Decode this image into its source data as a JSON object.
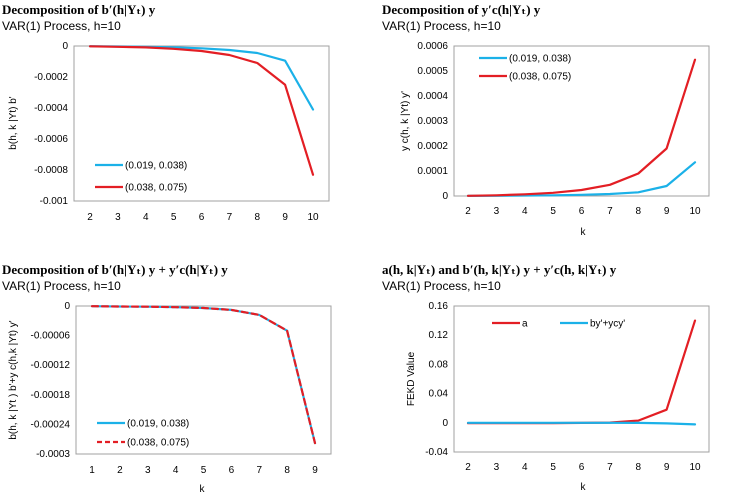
{
  "chart_data": [
    {
      "type": "line",
      "title": "Decomposition of b′(h|Yₜ) y",
      "subtitle": "VAR(1) Process, h=10",
      "xlabel": "",
      "ylabel": "b(h, k |Yt)  b'",
      "x": [
        2,
        3,
        4,
        5,
        6,
        7,
        8,
        9,
        10
      ],
      "xticks": [
        "2",
        "3",
        "4",
        "5",
        "6",
        "7",
        "8",
        "9",
        "10"
      ],
      "ylim": [
        -0.001,
        0
      ],
      "yticks": [
        "0",
        "-0.0002",
        "-0.0004",
        "-0.0006",
        "-0.0008",
        "-0.001"
      ],
      "legend": "bottom-left",
      "series": [
        {
          "name": "(0.019, 0.038)",
          "color": "#1BB1E8",
          "dash": false,
          "values": [
            -1e-06,
            -3e-06,
            -5e-06,
            -9e-06,
            -1.5e-05,
            -2.6e-05,
            -4.5e-05,
            -9.5e-05,
            -0.00041
          ]
        },
        {
          "name": "(0.038, 0.075)",
          "color": "#E31E24",
          "dash": false,
          "values": [
            -2e-06,
            -5e-06,
            -9e-06,
            -1.8e-05,
            -3.2e-05,
            -5.8e-05,
            -0.00011,
            -0.00025,
            -0.00083
          ]
        }
      ]
    },
    {
      "type": "line",
      "title": "Decomposition of y′c(h|Yₜ) y",
      "subtitle": "VAR(1) Process, h=10",
      "xlabel": "k",
      "ylabel": "y c(h, k |Yt) y'",
      "x": [
        2,
        3,
        4,
        5,
        6,
        7,
        8,
        9,
        10
      ],
      "xticks": [
        "2",
        "3",
        "4",
        "5",
        "6",
        "7",
        "8",
        "9",
        "10"
      ],
      "ylim": [
        0,
        0.0006
      ],
      "yticks": [
        "0",
        "0.0001",
        "0.0002",
        "0.0003",
        "0.0004",
        "0.0005",
        "0.0006"
      ],
      "legend": "top-left",
      "series": [
        {
          "name": "(0.019, 0.038)",
          "color": "#1BB1E8",
          "dash": false,
          "values": [
            5e-07,
            1e-06,
            2e-06,
            3e-06,
            5e-06,
            8e-06,
            1.5e-05,
            4e-05,
            0.000135
          ]
        },
        {
          "name": "(0.038, 0.075)",
          "color": "#E31E24",
          "dash": false,
          "values": [
            1e-06,
            3e-06,
            7e-06,
            1.3e-05,
            2.4e-05,
            4.5e-05,
            9e-05,
            0.00019,
            0.000545
          ]
        }
      ]
    },
    {
      "type": "line",
      "title": "Decomposition of b′(h|Yₜ) y + y′c(h|Yₜ) y",
      "subtitle": "VAR(1) Process, h=10",
      "xlabel": "k",
      "ylabel": "b(h, k |Yt ) b'+y c(h,k |Yt) y'",
      "x": [
        1,
        2,
        3,
        4,
        5,
        6,
        7,
        8,
        9
      ],
      "xticks": [
        "1",
        "2",
        "3",
        "4",
        "5",
        "6",
        "7",
        "8",
        "9"
      ],
      "ylim": [
        -0.0003,
        0
      ],
      "yticks": [
        "0",
        "-0.00006",
        "-0.00012",
        "-0.00018",
        "-0.00024",
        "-0.0003"
      ],
      "legend": "bottom-left",
      "series": [
        {
          "name": "(0.019, 0.038)",
          "color": "#1BB1E8",
          "dash": false,
          "values": [
            -5e-07,
            -1e-06,
            -1.5e-06,
            -2.5e-06,
            -4e-06,
            -8e-06,
            -1.8e-05,
            -5e-05,
            -0.000278
          ]
        },
        {
          "name": "(0.038, 0.075)",
          "color": "#E31E24",
          "dash": true,
          "values": [
            -5e-07,
            -1e-06,
            -1.5e-06,
            -2.5e-06,
            -4e-06,
            -8e-06,
            -1.8e-05,
            -5e-05,
            -0.000278
          ]
        }
      ]
    },
    {
      "type": "line",
      "title": "a(h, k|Yₜ) and b′(h, k|Yₜ) y + y′c(h, k|Yₜ) y",
      "subtitle": "VAR(1) Process, h=10",
      "xlabel": "k",
      "ylabel": "FEKD Value",
      "x": [
        2,
        3,
        4,
        5,
        6,
        7,
        8,
        9,
        10
      ],
      "xticks": [
        "2",
        "3",
        "4",
        "5",
        "6",
        "7",
        "8",
        "9",
        "10"
      ],
      "ylim": [
        -0.04,
        0.16
      ],
      "yticks": [
        "0.16",
        "0.12",
        "0.08",
        "0.04",
        "0",
        "-0.04"
      ],
      "legend": "top",
      "series": [
        {
          "name": "a",
          "color": "#E31E24",
          "dash": false,
          "values": [
            -0.0005,
            -0.0005,
            -0.0005,
            -0.0004,
            -0.0002,
            0.0003,
            0.003,
            0.018,
            0.14
          ]
        },
        {
          "name": "by'+ycy'",
          "color": "#1BB1E8",
          "dash": false,
          "values": [
            0,
            0,
            0,
            0,
            0,
            0,
            -0.0001,
            -0.0008,
            -0.0022
          ]
        }
      ]
    }
  ]
}
